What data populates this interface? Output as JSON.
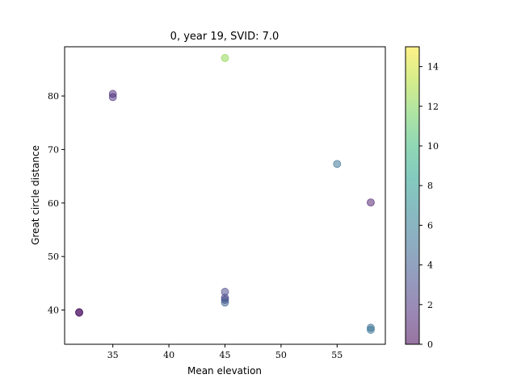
{
  "chart_data": {
    "type": "scatter",
    "title": "0, year 19, SVID: 7.0",
    "xlabel": "Mean elevation",
    "ylabel": "Great circle distance",
    "xlim": [
      30.7,
      59.3
    ],
    "ylim": [
      33.6,
      89.2
    ],
    "xticks": [
      35,
      40,
      45,
      50,
      55
    ],
    "yticks": [
      40,
      50,
      60,
      70,
      80
    ],
    "grid": false,
    "colormap": "viridis",
    "point_alpha": 0.5,
    "colorbar": {
      "range": [
        0,
        15
      ],
      "ticks": [
        0,
        2,
        4,
        6,
        8,
        10,
        12,
        14
      ]
    },
    "points": [
      {
        "x": 32,
        "y": 39.6,
        "c": 0.3
      },
      {
        "x": 32,
        "y": 39.5,
        "c": 0.5
      },
      {
        "x": 35,
        "y": 80.4,
        "c": 1.5
      },
      {
        "x": 35,
        "y": 79.8,
        "c": 1.8
      },
      {
        "x": 45,
        "y": 87.1,
        "c": 12.3
      },
      {
        "x": 45,
        "y": 43.4,
        "c": 2.8
      },
      {
        "x": 45,
        "y": 42.3,
        "c": 3.0
      },
      {
        "x": 45,
        "y": 41.9,
        "c": 2.6
      },
      {
        "x": 45,
        "y": 41.4,
        "c": 4.4
      },
      {
        "x": 55,
        "y": 67.3,
        "c": 5.2
      },
      {
        "x": 58,
        "y": 60.1,
        "c": 0.8
      },
      {
        "x": 58,
        "y": 36.7,
        "c": 5.0
      },
      {
        "x": 58,
        "y": 36.3,
        "c": 5.5
      }
    ]
  }
}
